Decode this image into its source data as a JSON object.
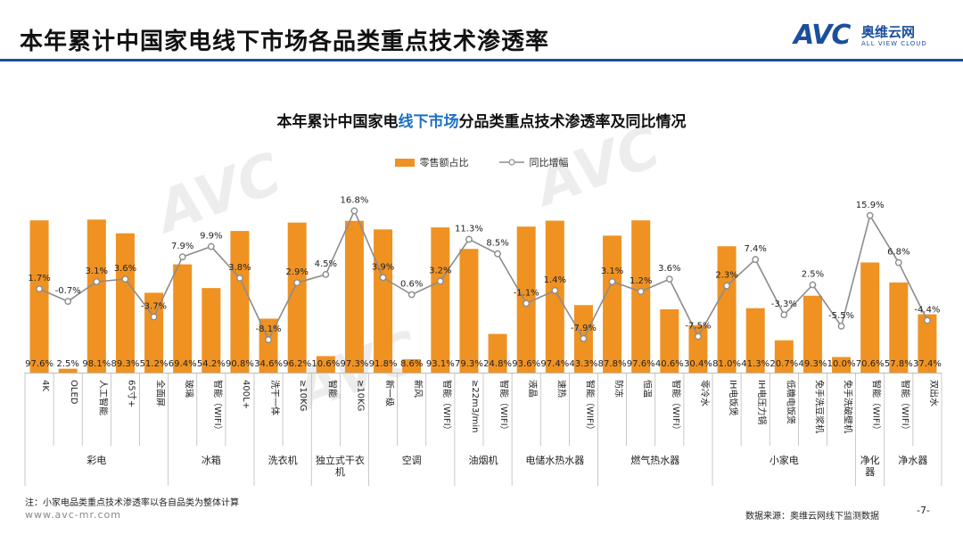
{
  "header": {
    "title": "本年累计中国家电线下市场各品类重点技术渗透率",
    "logo_mark": "AVC",
    "logo_cn": "奥维云网",
    "logo_en": "ALL VIEW CLOUD"
  },
  "chart_title": {
    "part1": "本年累计中国家电",
    "highlight": "线下市场",
    "part2": "分品类重点技术渗透率及同比情况"
  },
  "colors": {
    "bar": "#ef9222",
    "line": "#8c8c8c",
    "brand": "#1b4f9c"
  },
  "chart_data": {
    "type": "bar",
    "series": [
      {
        "name": "零售额占比",
        "type": "bar",
        "unit": "%",
        "values": [
          97.6,
          2.5,
          98.1,
          89.3,
          51.2,
          69.4,
          54.2,
          90.8,
          34.6,
          96.2,
          10.6,
          97.3,
          91.8,
          8.6,
          93.1,
          79.3,
          24.8,
          93.6,
          97.4,
          43.3,
          87.8,
          97.6,
          40.6,
          30.4,
          81.0,
          41.3,
          20.7,
          49.3,
          10.0,
          70.6,
          57.8,
          37.4
        ],
        "labels": [
          "97.6%",
          "2.5%",
          "98.1%",
          "89.3%",
          "51.2%",
          "69.4%",
          "54.2%",
          "90.8%",
          "34.6%",
          "96.2%",
          "10.6%",
          "97.3%",
          "91.8%",
          "8.6%",
          "93.1%",
          "79.3%",
          "24.8%",
          "93.6%",
          "97.4%",
          "43.3%",
          "87.8%",
          "97.6%",
          "40.6%",
          "30.4%",
          "81.0%",
          "41.3%",
          "20.7%",
          "49.3%",
          "10.0%",
          "70.6%",
          "57.8%",
          "37.4%"
        ]
      },
      {
        "name": "同比增幅",
        "type": "line",
        "unit": "%",
        "values": [
          1.7,
          -0.7,
          3.1,
          3.6,
          -3.7,
          7.9,
          9.9,
          3.8,
          -8.1,
          2.9,
          4.5,
          16.8,
          3.9,
          0.6,
          3.2,
          11.3,
          8.5,
          -1.1,
          1.4,
          -7.9,
          3.1,
          1.2,
          3.6,
          -7.5,
          2.3,
          7.4,
          -3.3,
          2.5,
          -5.5,
          15.9,
          6.8,
          -4.4
        ],
        "labels": [
          "1.7%",
          "-0.7%",
          "3.1%",
          "3.6%",
          "-3.7%",
          "7.9%",
          "9.9%",
          "3.8%",
          "-8.1%",
          "2.9%",
          "4.5%",
          "16.8%",
          "3.9%",
          "0.6%",
          "3.2%",
          "11.3%",
          "8.5%",
          "-1.1%",
          "1.4%",
          "-7.9%",
          "3.1%",
          "1.2%",
          "3.6%",
          "-7.5%",
          "2.3%",
          "7.4%",
          "-3.3%",
          "2.5%",
          "-5.5%",
          "15.9%",
          "6.8%",
          "-4.4%"
        ]
      }
    ],
    "categories": [
      "4K",
      "OLED",
      "人工智能",
      "65寸+",
      "全面屏",
      "玻璃",
      "智能（WIFI）",
      "400L+",
      "洗干一体",
      "≥10KG",
      "智能",
      "≥10KG",
      "新一级",
      "新风",
      "智能（WIFI）",
      "≥22m3/min",
      "智能（WIFI）",
      "液晶",
      "速热",
      "智能（WIFI）",
      "防冻",
      "恒温",
      "智能（WIFI）",
      "零冷水",
      "IH电饭煲",
      "IH电压力锅",
      "低糖电饭煲",
      "免手洗豆浆机",
      "免手洗破壁机",
      "智能（WIFI）",
      "智能（WIFI）",
      "双出水"
    ],
    "groups": [
      {
        "name": "彩电",
        "start": 0,
        "end": 4
      },
      {
        "name": "冰箱",
        "start": 5,
        "end": 7
      },
      {
        "name": "洗衣机",
        "start": 8,
        "end": 9
      },
      {
        "name": "独立式干衣机",
        "start": 10,
        "end": 11
      },
      {
        "name": "空调",
        "start": 12,
        "end": 14
      },
      {
        "name": "油烟机",
        "start": 15,
        "end": 16
      },
      {
        "name": "电储水热水器",
        "start": 17,
        "end": 19
      },
      {
        "name": "燃气热水器",
        "start": 20,
        "end": 23
      },
      {
        "name": "小家电",
        "start": 24,
        "end": 28
      },
      {
        "name": "净化器",
        "start": 29,
        "end": 29
      },
      {
        "name": "净水器",
        "start": 30,
        "end": 31
      }
    ],
    "legend_position": "top-center",
    "grid": false
  },
  "footer": {
    "note": "注：小家电品类重点技术渗透率以各自品类为整体计算",
    "website": "www.avc-mr.com",
    "source": "数据来源：奥维云网线下监测数据",
    "page": "-7-"
  }
}
